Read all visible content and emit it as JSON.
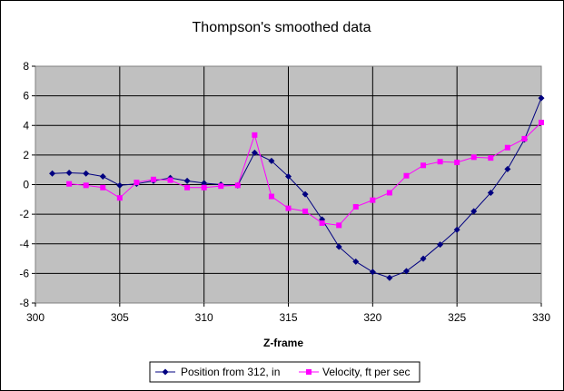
{
  "chart_data": {
    "type": "line",
    "title": "Thompson's smoothed data",
    "xlabel": "Z-frame",
    "ylabel": "",
    "xlim": [
      300,
      330
    ],
    "ylim": [
      -8,
      8
    ],
    "x_ticks": [
      300,
      305,
      310,
      315,
      320,
      325,
      330
    ],
    "y_ticks": [
      -8,
      -6,
      -4,
      -2,
      0,
      2,
      4,
      6,
      8
    ],
    "grid": true,
    "legend_position": "bottom",
    "plot_background": "#C0C0C0",
    "series": [
      {
        "name": "Position from 312, in",
        "color": "#000080",
        "marker": "diamond",
        "x": [
          301,
          302,
          303,
          304,
          305,
          306,
          307,
          308,
          309,
          310,
          311,
          312,
          313,
          314,
          315,
          316,
          317,
          318,
          319,
          320,
          321,
          322,
          323,
          324,
          325,
          326,
          327,
          328,
          329,
          330
        ],
        "values": [
          0.75,
          0.8,
          0.75,
          0.55,
          -0.05,
          0.05,
          0.25,
          0.45,
          0.25,
          0.1,
          0.0,
          -0.05,
          2.15,
          1.6,
          0.55,
          -0.65,
          -2.35,
          -4.2,
          -5.2,
          -5.9,
          -6.3,
          -5.85,
          -5.0,
          -4.05,
          -3.05,
          -1.8,
          -0.55,
          1.05,
          3.05,
          5.85
        ]
      },
      {
        "name": "Velocity, ft per sec",
        "color": "#FF00FF",
        "marker": "square",
        "x": [
          302,
          303,
          304,
          305,
          306,
          307,
          308,
          309,
          310,
          311,
          312,
          313,
          314,
          315,
          316,
          317,
          318,
          319,
          320,
          321,
          322,
          323,
          324,
          325,
          326,
          327,
          328,
          329,
          330
        ],
        "values": [
          0.05,
          -0.05,
          -0.2,
          -0.9,
          0.15,
          0.35,
          0.3,
          -0.2,
          -0.2,
          -0.1,
          -0.05,
          3.35,
          -0.8,
          -1.6,
          -1.8,
          -2.6,
          -2.75,
          -1.5,
          -1.05,
          -0.55,
          0.6,
          1.3,
          1.55,
          1.5,
          1.85,
          1.8,
          2.5,
          3.1,
          4.2
        ]
      }
    ]
  }
}
